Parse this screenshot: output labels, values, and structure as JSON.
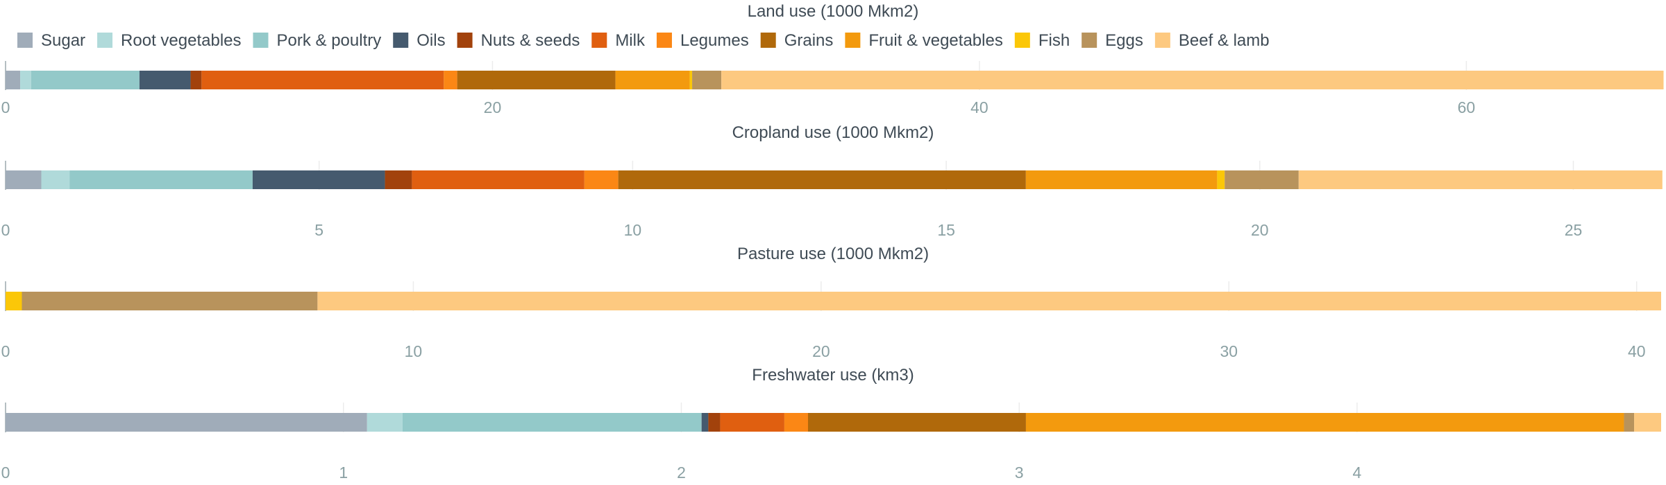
{
  "legend": [
    {
      "name": "Sugar",
      "color": "#a0acb9"
    },
    {
      "name": "Root vegetables",
      "color": "#b0dada"
    },
    {
      "name": "Pork & poultry",
      "color": "#93c9c9"
    },
    {
      "name": "Oils",
      "color": "#455a6e"
    },
    {
      "name": "Nuts & seeds",
      "color": "#a2420c"
    },
    {
      "name": "Milk",
      "color": "#e05f10"
    },
    {
      "name": "Legumes",
      "color": "#fb8715"
    },
    {
      "name": "Grains",
      "color": "#b0690b"
    },
    {
      "name": "Fruit & vegetables",
      "color": "#f39a0e"
    },
    {
      "name": "Fish",
      "color": "#fbc708"
    },
    {
      "name": "Eggs",
      "color": "#b8935c"
    },
    {
      "name": "Beef & lamb",
      "color": "#fdc980"
    }
  ],
  "chart_data": [
    {
      "type": "bar",
      "orientation": "horizontal-stacked",
      "title": "Land use (1000 Mkm2)",
      "xlim": [
        0,
        68
      ],
      "ticks": [
        0,
        20,
        40,
        60
      ],
      "grid": true,
      "segments": [
        {
          "name": "Sugar",
          "value": 0.6
        },
        {
          "name": "Root vegetables",
          "value": 0.45
        },
        {
          "name": "Pork & poultry",
          "value": 4.45
        },
        {
          "name": "Oils",
          "value": 2.1
        },
        {
          "name": "Nuts & seeds",
          "value": 0.45
        },
        {
          "name": "Milk",
          "value": 9.95
        },
        {
          "name": "Legumes",
          "value": 0.55
        },
        {
          "name": "Grains",
          "value": 6.5
        },
        {
          "name": "Fruit & vegetables",
          "value": 3.05
        },
        {
          "name": "Fish",
          "value": 0.1
        },
        {
          "name": "Eggs",
          "value": 1.2
        },
        {
          "name": "Beef & lamb",
          "value": 38.7
        }
      ]
    },
    {
      "type": "bar",
      "orientation": "horizontal-stacked",
      "title": "Cropland use (1000 Mkm2)",
      "xlim": [
        0,
        26.4
      ],
      "ticks": [
        0,
        5,
        10,
        15,
        20,
        25
      ],
      "grid": true,
      "segments": [
        {
          "name": "Sugar",
          "value": 0.57
        },
        {
          "name": "Root vegetables",
          "value": 0.45
        },
        {
          "name": "Pork & poultry",
          "value": 2.92
        },
        {
          "name": "Oils",
          "value": 2.11
        },
        {
          "name": "Nuts & seeds",
          "value": 0.43
        },
        {
          "name": "Milk",
          "value": 2.75
        },
        {
          "name": "Legumes",
          "value": 0.54
        },
        {
          "name": "Grains",
          "value": 6.5
        },
        {
          "name": "Fruit & vegetables",
          "value": 3.05
        },
        {
          "name": "Fish",
          "value": 0.12
        },
        {
          "name": "Eggs",
          "value": 1.18
        },
        {
          "name": "Beef & lamb",
          "value": 5.8
        }
      ]
    },
    {
      "type": "bar",
      "orientation": "horizontal-stacked",
      "title": "Pasture use (1000 Mkm2)",
      "xlim": [
        0,
        40.6
      ],
      "ticks": [
        0,
        10,
        20,
        30,
        40
      ],
      "grid": true,
      "segments": [
        {
          "name": "Fish",
          "value": 0.4
        },
        {
          "name": "Eggs",
          "value": 7.25
        },
        {
          "name": "Beef & lamb",
          "value": 32.95
        }
      ]
    },
    {
      "type": "bar",
      "orientation": "horizontal-stacked",
      "title": "Freshwater use (km3)",
      "xlim": [
        0,
        4.9
      ],
      "ticks": [
        0,
        1,
        2,
        3,
        4
      ],
      "grid": true,
      "segments": [
        {
          "name": "Sugar",
          "value": 1.07
        },
        {
          "name": "Root vegetables",
          "value": 0.105
        },
        {
          "name": "Pork & poultry",
          "value": 0.885
        },
        {
          "name": "Oils",
          "value": 0.02
        },
        {
          "name": "Nuts & seeds",
          "value": 0.035
        },
        {
          "name": "Milk",
          "value": 0.19
        },
        {
          "name": "Legumes",
          "value": 0.07
        },
        {
          "name": "Grains",
          "value": 0.645
        },
        {
          "name": "Fruit & vegetables",
          "value": 1.77
        },
        {
          "name": "Eggs",
          "value": 0.03
        },
        {
          "name": "Beef & lamb",
          "value": 0.08
        }
      ]
    }
  ]
}
